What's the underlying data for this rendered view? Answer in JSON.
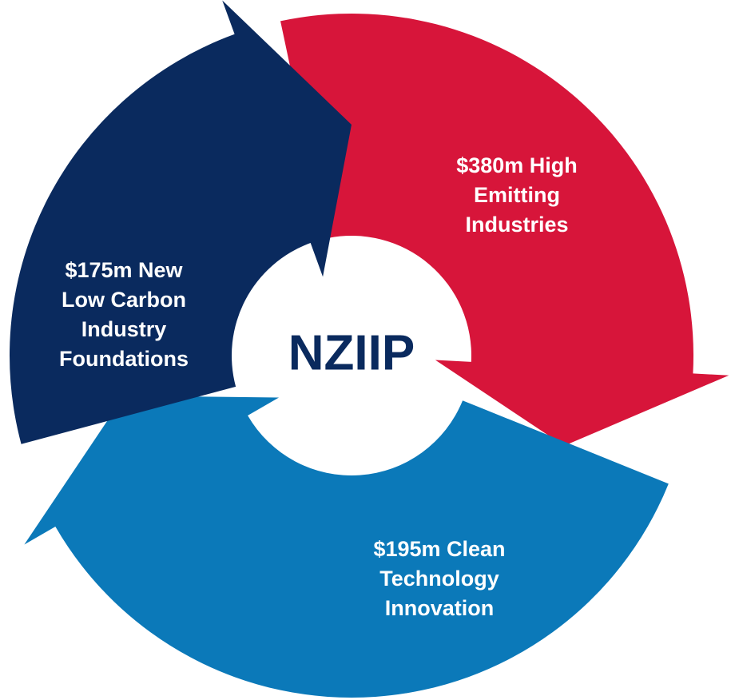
{
  "center": "NZIIP",
  "segments": [
    {
      "lines": [
        "$380m High",
        "Emitting",
        "Industries"
      ]
    },
    {
      "lines": [
        "$195m Clean",
        "Technology",
        "Innovation"
      ]
    },
    {
      "lines": [
        "$175m New",
        "Low Carbon",
        "Industry",
        "Foundations"
      ]
    }
  ]
}
